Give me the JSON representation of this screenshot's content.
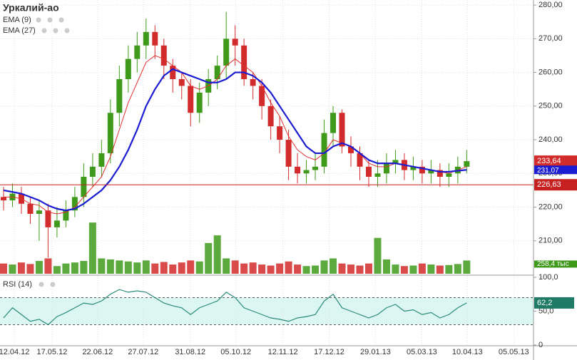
{
  "chart_data": [
    {
      "type": "candlestick",
      "title": "Уркалий-ао",
      "open": [
        223,
        222,
        224,
        221,
        218,
        219,
        214,
        216,
        219,
        223,
        229,
        232,
        236,
        248,
        258,
        264,
        268,
        272,
        268,
        262,
        258,
        256,
        248,
        254,
        258,
        262,
        270,
        268,
        258,
        256,
        250,
        244,
        240,
        232,
        230,
        231,
        232,
        242,
        248,
        238,
        236,
        232,
        229,
        230,
        233,
        234,
        231,
        232,
        230,
        231,
        229,
        230,
        232
      ],
      "high": [
        226,
        227,
        226,
        223,
        222,
        221,
        220,
        222,
        226,
        233,
        236,
        240,
        252,
        262,
        268,
        272,
        276,
        274,
        270,
        264,
        260,
        258,
        257,
        261,
        265,
        278,
        274,
        270,
        260,
        258,
        252,
        247,
        243,
        236,
        234,
        236,
        246,
        250,
        249,
        241,
        238,
        234,
        234,
        236,
        237,
        236,
        235,
        234,
        234,
        233,
        233,
        235,
        237
      ],
      "low": [
        219,
        220,
        218,
        215,
        210,
        205,
        211,
        214,
        217,
        220,
        226,
        229,
        233,
        244,
        254,
        260,
        264,
        264,
        258,
        254,
        252,
        244,
        245,
        250,
        255,
        258,
        262,
        256,
        252,
        246,
        240,
        236,
        228,
        227,
        227,
        228,
        230,
        238,
        236,
        232,
        228,
        226,
        226,
        227,
        230,
        228,
        228,
        227,
        227,
        226,
        226,
        227,
        230
      ],
      "close": [
        222,
        224,
        221,
        218,
        219,
        214,
        216,
        219,
        223,
        229,
        232,
        236,
        248,
        258,
        264,
        268,
        272,
        268,
        262,
        258,
        256,
        248,
        254,
        258,
        262,
        270,
        268,
        258,
        256,
        250,
        244,
        240,
        232,
        230,
        231,
        232,
        242,
        248,
        238,
        236,
        232,
        229,
        230,
        233,
        234,
        231,
        232,
        230,
        231,
        229,
        230,
        232,
        233.64
      ],
      "close_label": "233,64",
      "up_color": "#3f9a1c",
      "down_color": "#d22b2b",
      "series": [
        {
          "name": "EMA (9)",
          "color": "#e03030",
          "values": [
            223,
            223,
            222.5,
            221,
            220.5,
            218.5,
            218,
            218.5,
            220,
            223,
            226,
            229,
            235,
            243,
            251,
            257,
            263,
            265,
            264,
            262,
            260,
            256,
            255,
            256,
            258,
            262,
            264,
            262,
            260,
            256,
            251,
            247,
            241,
            237,
            235,
            234,
            236,
            240,
            239,
            238,
            236,
            233,
            232,
            232,
            233,
            232.5,
            232,
            231.5,
            231,
            230.5,
            230,
            231,
            232
          ]
        },
        {
          "name": "EMA (27)",
          "color": "#1c1cd0",
          "values": [
            225,
            224.5,
            224,
            223,
            222,
            220.5,
            219.5,
            219,
            219.5,
            221,
            223,
            225,
            228,
            232,
            237,
            243,
            250,
            255,
            259,
            261,
            260,
            259,
            258,
            257,
            257,
            258,
            260,
            260,
            259,
            257,
            254,
            250,
            246,
            242,
            238,
            236,
            236,
            238,
            239,
            238,
            236,
            234,
            233,
            233,
            233,
            232.5,
            232,
            231.5,
            231,
            230.5,
            230.5,
            230.8,
            231.07
          ],
          "value_label": "231,07"
        }
      ],
      "hline": {
        "value": 226.63,
        "label": "226,63",
        "color": "#c62020"
      },
      "xlim": [
        -0.4,
        59.5
      ],
      "ylim": [
        200,
        281.5
      ],
      "yticks": [
        {
          "value": 210,
          "label": "210,00"
        },
        {
          "value": 220,
          "label": "220,00"
        },
        {
          "value": 230,
          "label": "230,00"
        },
        {
          "value": 240,
          "label": "240,00"
        },
        {
          "value": 250,
          "label": "250,00"
        },
        {
          "value": 260,
          "label": "260,00"
        },
        {
          "value": 270,
          "label": "270,00"
        },
        {
          "value": 280,
          "label": "280,00"
        }
      ],
      "grid": true
    },
    {
      "type": "bar",
      "values": [
        200,
        180,
        220,
        190,
        250,
        300,
        150,
        200,
        220,
        250,
        1000,
        300,
        280,
        260,
        240,
        220,
        260,
        200,
        230,
        180,
        220,
        260,
        240,
        600,
        750,
        300,
        260,
        200,
        220,
        180,
        160,
        200,
        240,
        180,
        150,
        160,
        260,
        300,
        200,
        180,
        160,
        200,
        700,
        280,
        180,
        150,
        160,
        200,
        180,
        160,
        170,
        190,
        258.4
      ],
      "value_labels": [
        null,
        null,
        null,
        null,
        null,
        null,
        null,
        null,
        null,
        null,
        null,
        null,
        null,
        null,
        null,
        null,
        null,
        null,
        null,
        null,
        null,
        null,
        null,
        null,
        null,
        null,
        null,
        null,
        null,
        null,
        null,
        null,
        null,
        null,
        null,
        null,
        null,
        null,
        null,
        null,
        null,
        null,
        null,
        null,
        null,
        null,
        null,
        null,
        null,
        null,
        null,
        null,
        "258,4 тыс"
      ],
      "ylim": [
        0,
        1100
      ]
    },
    {
      "type": "line",
      "title": "RSI (14)",
      "color": "#2a8a78",
      "band_color": "#dcf6f2",
      "values": [
        40,
        55,
        45,
        35,
        38,
        30,
        42,
        48,
        55,
        62,
        60,
        65,
        75,
        82,
        78,
        80,
        78,
        70,
        62,
        58,
        55,
        45,
        55,
        60,
        65,
        78,
        70,
        55,
        50,
        45,
        40,
        38,
        35,
        40,
        42,
        45,
        65,
        75,
        55,
        50,
        45,
        40,
        45,
        55,
        60,
        50,
        52,
        45,
        48,
        40,
        45,
        55,
        62.2
      ],
      "value_label": "62,2",
      "levels": [
        30,
        70
      ],
      "ylim": [
        0,
        100
      ],
      "yticks": [
        0,
        {
          "value": 50,
          "label": "50,0"
        },
        {
          "value": 100,
          "label": "100,0"
        }
      ],
      "xlim": [
        -0.4,
        59.5
      ],
      "xticks": [
        {
          "value": 1.2,
          "label": "12.04.12"
        },
        {
          "value": 5.44,
          "label": "17.05.12"
        },
        {
          "value": 10.56,
          "label": "22.06.12"
        },
        {
          "value": 15.68,
          "label": "27.07.12"
        },
        {
          "value": 20.96,
          "label": "31.08.12"
        },
        {
          "value": 26.08,
          "label": "05.10.12"
        },
        {
          "value": 31.36,
          "label": "12.11.12"
        },
        {
          "value": 36.56,
          "label": "17.12.12"
        },
        {
          "value": 41.76,
          "label": "29.01.13"
        },
        {
          "value": 46.96,
          "label": "05.03.13"
        },
        {
          "value": 52.08,
          "label": "10.04.13"
        },
        {
          "value": 57.28,
          "label": "05.05.13"
        }
      ]
    }
  ]
}
